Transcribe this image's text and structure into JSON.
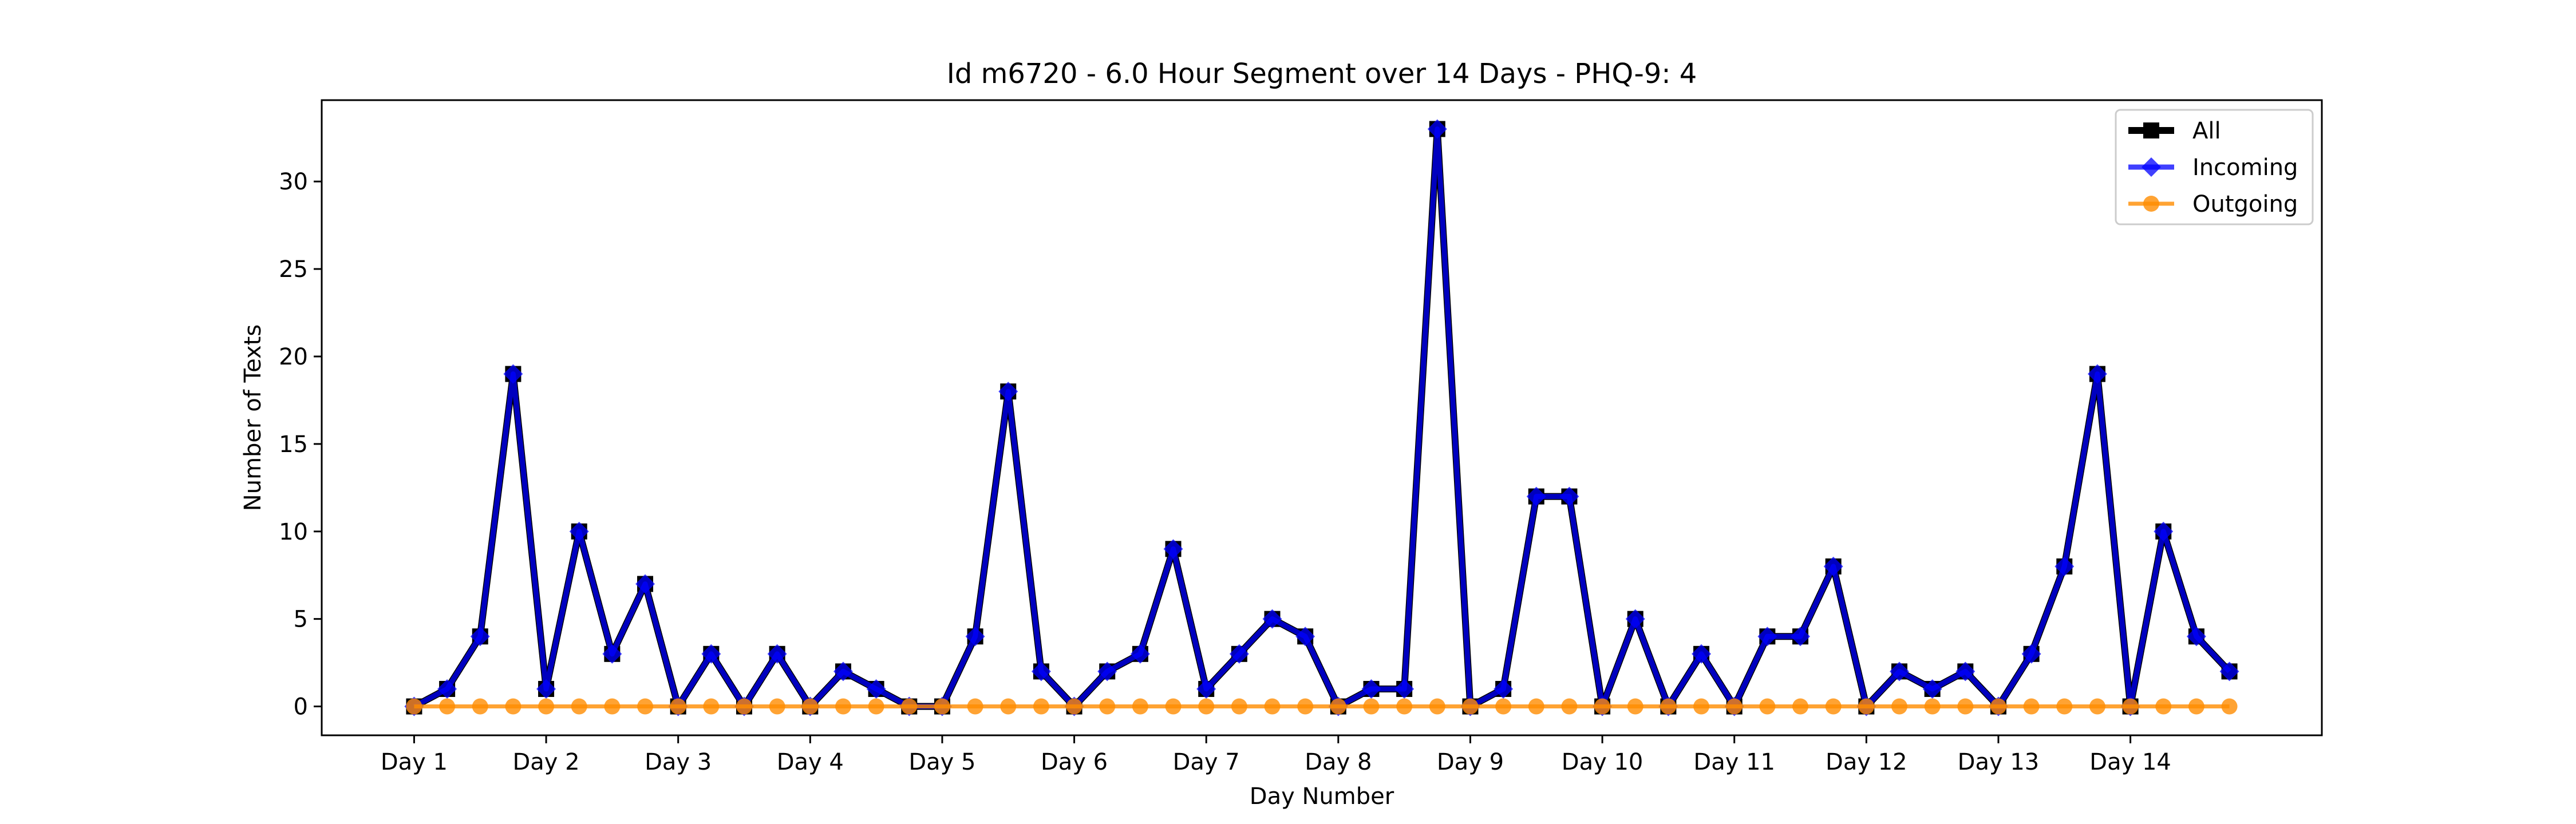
{
  "chart_data": {
    "type": "line",
    "title": "Id m6720 - 6.0 Hour Segment over 14 Days - PHQ-9: 4",
    "xlabel": "Day Number",
    "ylabel": "Number of Texts",
    "ylim": [
      -1.65,
      34.65
    ],
    "xlim": [
      -2.8,
      57.8
    ],
    "x_ticks": [
      0,
      4,
      8,
      12,
      16,
      20,
      24,
      28,
      32,
      36,
      40,
      44,
      48,
      52
    ],
    "x_tick_labels": [
      "Day 1",
      "Day 2",
      "Day 3",
      "Day 4",
      "Day 5",
      "Day 6",
      "Day 7",
      "Day 8",
      "Day 9",
      "Day 10",
      "Day 11",
      "Day 12",
      "Day 13",
      "Day 14"
    ],
    "y_ticks": [
      0,
      5,
      10,
      15,
      20,
      25,
      30
    ],
    "grid": false,
    "legend_position": "top-right",
    "x": [
      0,
      1,
      2,
      3,
      4,
      5,
      6,
      7,
      8,
      9,
      10,
      11,
      12,
      13,
      14,
      15,
      16,
      17,
      18,
      19,
      20,
      21,
      22,
      23,
      24,
      25,
      26,
      27,
      28,
      29,
      30,
      31,
      32,
      33,
      34,
      35,
      36,
      37,
      38,
      39,
      40,
      41,
      42,
      43,
      44,
      45,
      46,
      47,
      48,
      49,
      50,
      51,
      52,
      53,
      54,
      55
    ],
    "series": [
      {
        "name": "All",
        "color": "#000000",
        "marker": "square",
        "values": [
          0,
          1,
          4,
          19,
          1,
          10,
          3,
          7,
          0,
          3,
          0,
          3,
          0,
          2,
          1,
          0,
          0,
          4,
          18,
          2,
          0,
          2,
          3,
          9,
          1,
          3,
          5,
          4,
          0,
          1,
          1,
          33,
          0,
          1,
          12,
          12,
          0,
          5,
          0,
          3,
          0,
          4,
          4,
          8,
          0,
          2,
          1,
          2,
          0,
          3,
          8,
          19,
          0,
          10,
          4,
          2
        ]
      },
      {
        "name": "Incoming",
        "color": "#0000ff",
        "marker": "diamond",
        "values": [
          0,
          1,
          4,
          19,
          1,
          10,
          3,
          7,
          0,
          3,
          0,
          3,
          0,
          2,
          1,
          0,
          0,
          4,
          18,
          2,
          0,
          2,
          3,
          9,
          1,
          3,
          5,
          4,
          0,
          1,
          1,
          33,
          0,
          1,
          12,
          12,
          0,
          5,
          0,
          3,
          0,
          4,
          4,
          8,
          0,
          2,
          1,
          2,
          0,
          3,
          8,
          19,
          0,
          10,
          4,
          2
        ]
      },
      {
        "name": "Outgoing",
        "color": "#ff8c00",
        "marker": "circle",
        "values": [
          0,
          0,
          0,
          0,
          0,
          0,
          0,
          0,
          0,
          0,
          0,
          0,
          0,
          0,
          0,
          0,
          0,
          0,
          0,
          0,
          0,
          0,
          0,
          0,
          0,
          0,
          0,
          0,
          0,
          0,
          0,
          0,
          0,
          0,
          0,
          0,
          0,
          0,
          0,
          0,
          0,
          0,
          0,
          0,
          0,
          0,
          0,
          0,
          0,
          0,
          0,
          0,
          0,
          0,
          0,
          0
        ]
      }
    ]
  }
}
